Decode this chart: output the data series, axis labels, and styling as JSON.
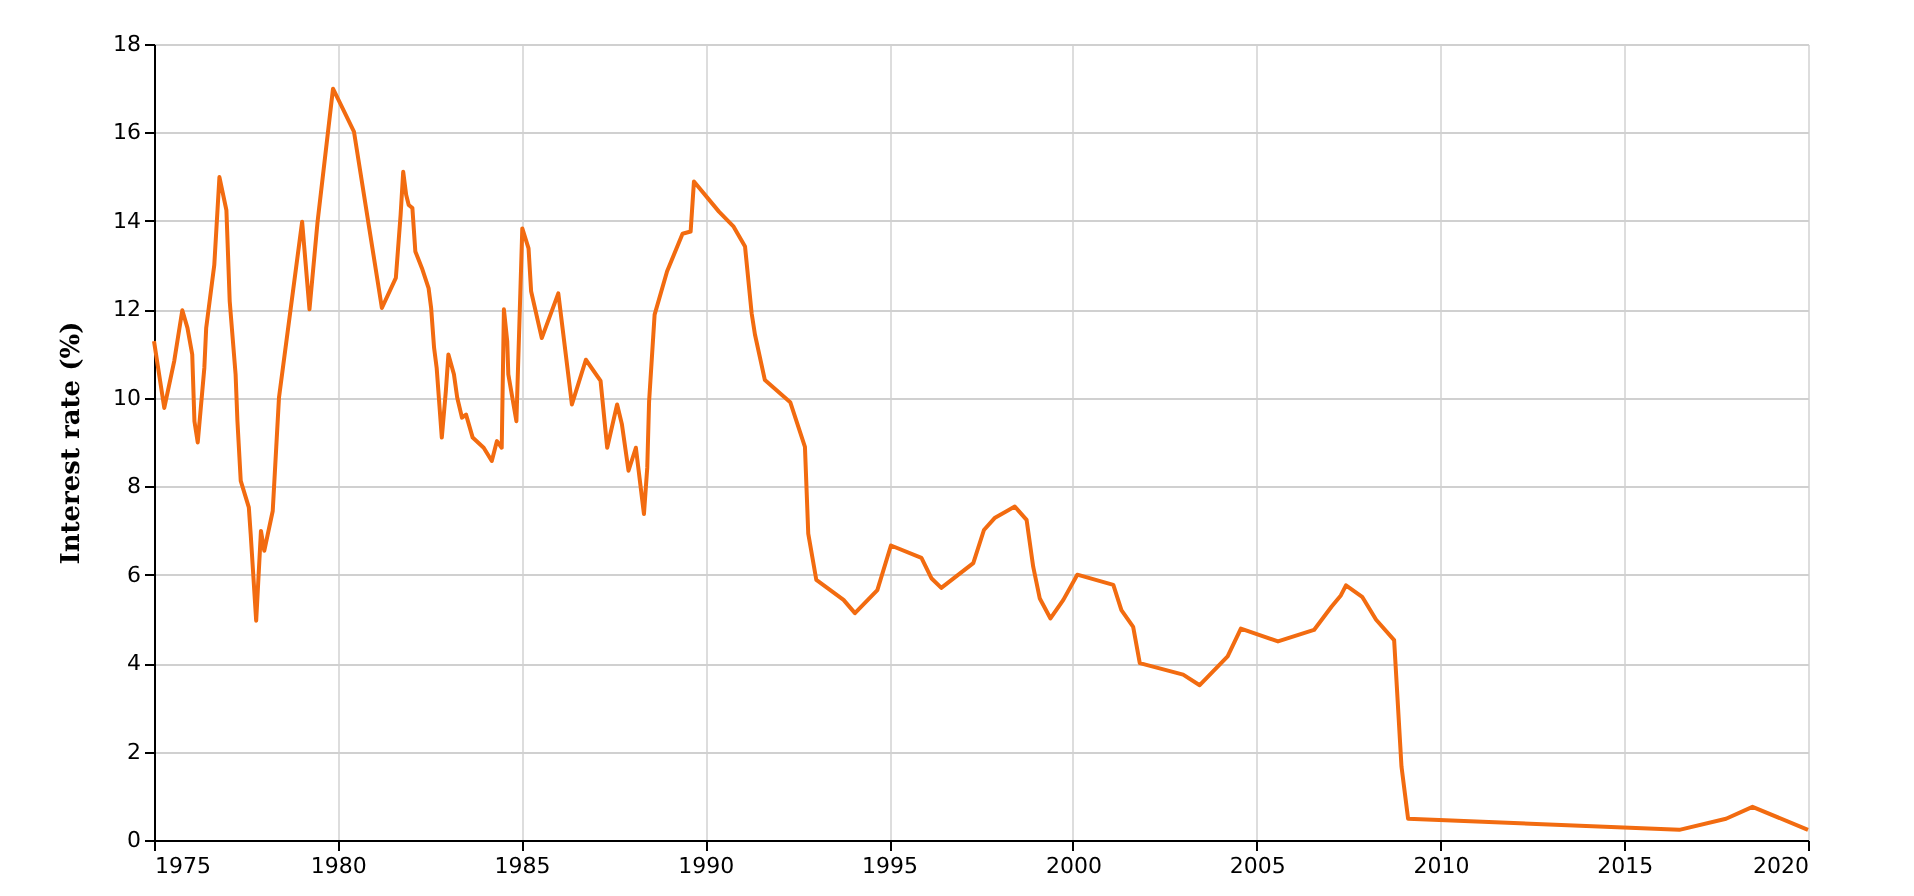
{
  "chart_data": {
    "type": "line",
    "ylabel": "Interest rate (%)",
    "x": [
      1975.0,
      1975.28,
      1975.55,
      1975.77,
      1975.91,
      1976.04,
      1976.1,
      1976.19,
      1976.37,
      1976.42,
      1976.64,
      1976.78,
      1976.97,
      1977.06,
      1977.22,
      1977.27,
      1977.36,
      1977.58,
      1977.63,
      1977.78,
      1977.91,
      1978.0,
      1978.23,
      1978.4,
      1979.03,
      1979.23,
      1979.45,
      1979.87,
      1980.44,
      1981.2,
      1981.58,
      1981.71,
      1981.78,
      1981.86,
      1981.93,
      1982.03,
      1982.11,
      1982.29,
      1982.47,
      1982.54,
      1982.62,
      1982.69,
      1982.83,
      1982.94,
      1983.01,
      1983.16,
      1983.25,
      1983.38,
      1983.49,
      1983.67,
      1983.97,
      1984.19,
      1984.33,
      1984.46,
      1984.52,
      1984.61,
      1984.64,
      1984.86,
      1985.02,
      1985.19,
      1985.26,
      1985.55,
      1986.0,
      1986.37,
      1986.75,
      1987.15,
      1987.33,
      1987.6,
      1987.73,
      1987.91,
      1988.11,
      1988.33,
      1988.42,
      1988.47,
      1988.62,
      1988.96,
      1989.38,
      1989.6,
      1989.69,
      1990.37,
      1990.77,
      1991.08,
      1991.26,
      1991.35,
      1991.62,
      1992.31,
      1992.71,
      1992.8,
      1993.02,
      1993.76,
      1994.07,
      1994.68,
      1995.05,
      1995.88,
      1996.15,
      1996.42,
      1997.29,
      1997.58,
      1997.87,
      1998.42,
      1998.74,
      1998.92,
      1999.1,
      1999.39,
      1999.74,
      2000.12,
      2001.1,
      2001.32,
      2001.64,
      2001.82,
      2003.0,
      2003.45,
      2004.21,
      2004.57,
      2005.58,
      2006.56,
      2007.04,
      2007.29,
      2007.43,
      2007.87,
      2008.25,
      2008.74,
      2008.94,
      2009.12,
      2016.5,
      2017.77,
      2018.49,
      2020.0
    ],
    "series": [
      {
        "color": "#f26b10",
        "values": [
          11.28,
          9.77,
          10.83,
          11.98,
          11.58,
          10.98,
          9.47,
          8.99,
          10.68,
          11.58,
          13.0,
          14.99,
          14.24,
          12.18,
          10.53,
          9.47,
          8.12,
          7.52,
          6.92,
          4.96,
          6.99,
          6.54,
          7.44,
          10.0,
          13.98,
          12.0,
          13.98,
          16.99,
          16.02,
          12.03,
          12.71,
          14.14,
          15.11,
          14.59,
          14.36,
          14.29,
          13.31,
          12.93,
          12.48,
          12.03,
          11.13,
          10.68,
          9.1,
          10.15,
          10.98,
          10.53,
          10.0,
          9.55,
          9.62,
          9.1,
          8.87,
          8.57,
          9.02,
          8.87,
          12.0,
          11.28,
          10.53,
          9.47,
          13.83,
          13.38,
          12.41,
          11.35,
          12.36,
          9.85,
          10.86,
          10.38,
          8.87,
          9.85,
          9.4,
          8.35,
          8.87,
          7.37,
          8.42,
          9.92,
          11.88,
          12.86,
          13.71,
          13.76,
          14.89,
          14.21,
          13.87,
          13.42,
          11.91,
          11.43,
          10.4,
          9.9,
          8.89,
          6.93,
          5.88,
          5.43,
          5.13,
          5.65,
          6.66,
          6.38,
          5.92,
          5.7,
          6.26,
          7.01,
          7.28,
          7.54,
          7.24,
          6.18,
          5.46,
          5.01,
          5.43,
          6.0,
          5.77,
          5.2,
          4.82,
          4.0,
          3.74,
          3.5,
          4.15,
          4.78,
          4.49,
          4.75,
          5.28,
          5.53,
          5.76,
          5.5,
          4.98,
          4.52,
          1.66,
          0.48,
          0.23,
          0.48,
          0.75,
          0.23
        ]
      }
    ],
    "xlim": [
      1975,
      2020
    ],
    "xticks": [
      1975,
      1980,
      1985,
      1990,
      1995,
      2000,
      2005,
      2010,
      2015,
      2020
    ],
    "ylim": [
      0,
      18
    ],
    "yticks": [
      0,
      2,
      4,
      6,
      8,
      10,
      12,
      14,
      16,
      18
    ],
    "grid": true,
    "legend": false,
    "marker": "none",
    "line_style": "solid"
  }
}
